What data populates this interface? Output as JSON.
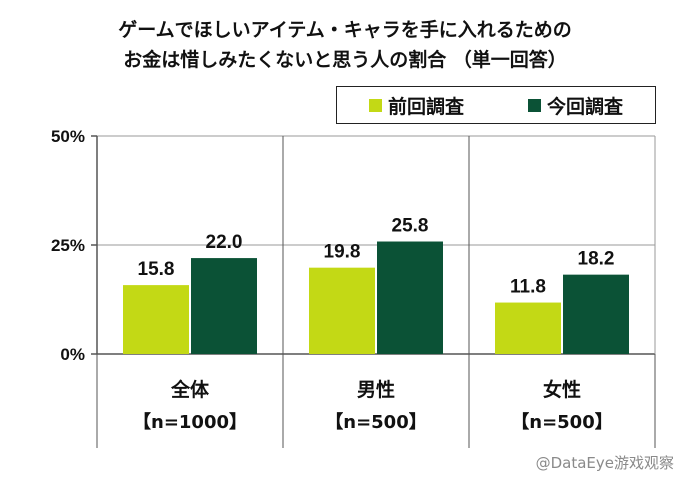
{
  "chart_data": {
    "type": "bar",
    "title": [
      "ゲームでほしいアイテム・キャラを手に入れるための",
      "お金は惜しみたくないと思う人の割合 （単一回答）"
    ],
    "categories": [
      "全体",
      "男性",
      "女性"
    ],
    "category_sublabels": [
      "【n=1000】",
      "【n=500】",
      "【n=500】"
    ],
    "series": [
      {
        "name": "前回調査",
        "values": [
          15.8,
          19.8,
          11.8
        ],
        "color": "#c3d915"
      },
      {
        "name": "今回調査",
        "values": [
          22.0,
          25.8,
          18.2
        ],
        "color": "#0b5236"
      }
    ],
    "value_labels": [
      [
        "15.8",
        "19.8",
        "11.8"
      ],
      [
        "22.0",
        "25.8",
        "18.2"
      ]
    ],
    "yticks": [
      "0%",
      "25%",
      "50%"
    ],
    "ylim": [
      0,
      50
    ],
    "grid": true,
    "legend_position": "top-right"
  },
  "watermark": "@DataEye游戏观察"
}
